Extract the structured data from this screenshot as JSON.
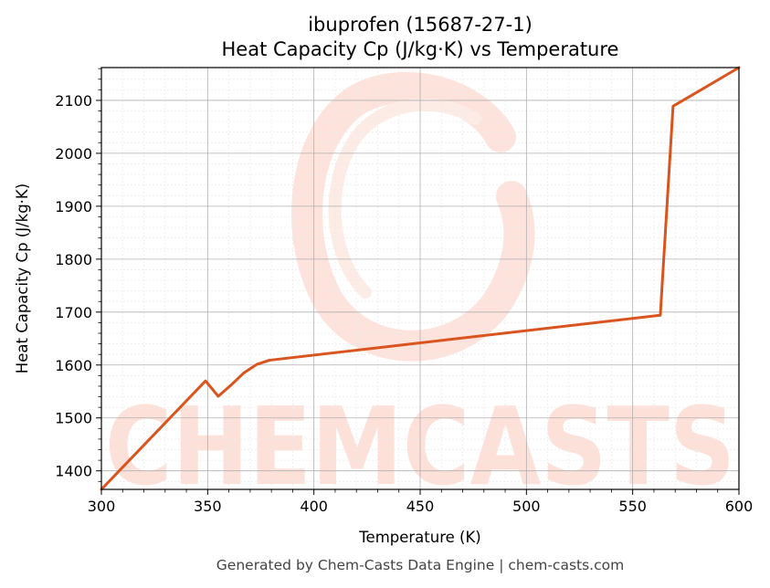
{
  "chart_data": {
    "type": "line",
    "title": "ibuprofen (15687-27-1)",
    "subtitle": "Heat Capacity Cp (J/kg·K) vs Temperature",
    "xlabel": "Temperature (K)",
    "ylabel": "Heat Capacity Cp (J/kg·K)",
    "xlim": [
      300,
      600
    ],
    "ylim": [
      1365,
      2162
    ],
    "x_ticks": [
      300,
      350,
      400,
      450,
      500,
      550,
      600
    ],
    "y_ticks": [
      1400,
      1500,
      1600,
      1700,
      1800,
      1900,
      2000,
      2100
    ],
    "grid": true,
    "legend": "none",
    "series": [
      {
        "color": "#d9541e",
        "x": [
          300,
          349,
          355,
          361,
          367,
          373,
          379,
          563,
          569,
          600
        ],
        "y": [
          1365,
          1570,
          1541,
          1562,
          1585,
          1601,
          1609,
          1694,
          2089,
          2162
        ]
      }
    ]
  },
  "watermark": {
    "text": "CHEMCASTS",
    "color": "#fde0d8"
  },
  "footer": "Generated by Chem-Casts Data Engine | chem-casts.com"
}
